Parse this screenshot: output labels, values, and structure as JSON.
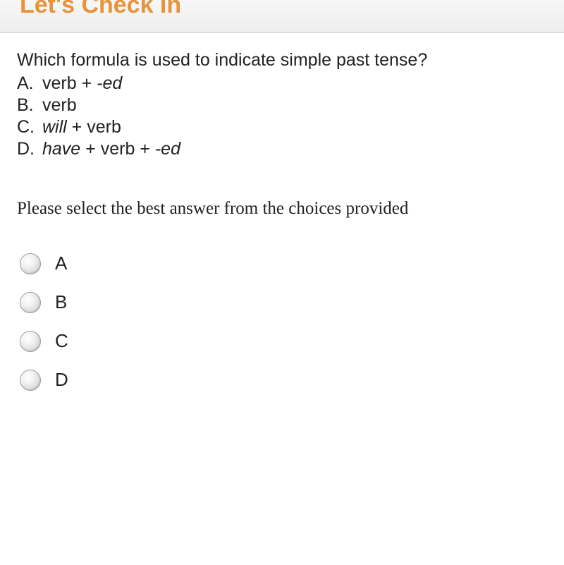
{
  "header": {
    "title": "Let's Check In",
    "title_color": "#e8933c"
  },
  "question": {
    "prompt": "Which formula is used to indicate simple past tense?",
    "options": [
      {
        "letter": "A.",
        "parts": [
          {
            "text": "verb + ",
            "italic": false
          },
          {
            "text": "-ed",
            "italic": true
          }
        ]
      },
      {
        "letter": "B.",
        "parts": [
          {
            "text": "verb",
            "italic": false
          }
        ]
      },
      {
        "letter": "C.",
        "parts": [
          {
            "text": "will",
            "italic": true
          },
          {
            "text": " + verb",
            "italic": false
          }
        ]
      },
      {
        "letter": "D.",
        "parts": [
          {
            "text": "have",
            "italic": true
          },
          {
            "text": " + verb + ",
            "italic": false
          },
          {
            "text": "-ed",
            "italic": true
          }
        ]
      }
    ]
  },
  "instruction": "Please select the best answer from the choices provided",
  "choices": [
    {
      "label": "A"
    },
    {
      "label": "B"
    },
    {
      "label": "C"
    },
    {
      "label": "D"
    }
  ],
  "styling": {
    "question_fontsize": 25,
    "instruction_fontsize": 25,
    "choice_fontsize": 26,
    "radio_diameter": 30,
    "background_color": "#ffffff",
    "text_color": "#222222"
  }
}
